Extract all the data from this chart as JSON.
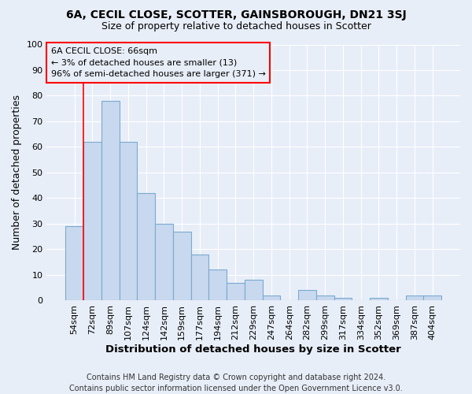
{
  "title_line1": "6A, CECIL CLOSE, SCOTTER, GAINSBOROUGH, DN21 3SJ",
  "title_line2": "Size of property relative to detached houses in Scotter",
  "xlabel": "Distribution of detached houses by size in Scotter",
  "ylabel": "Number of detached properties",
  "footer_line1": "Contains HM Land Registry data © Crown copyright and database right 2024.",
  "footer_line2": "Contains public sector information licensed under the Open Government Licence v3.0.",
  "categories": [
    "54sqm",
    "72sqm",
    "89sqm",
    "107sqm",
    "124sqm",
    "142sqm",
    "159sqm",
    "177sqm",
    "194sqm",
    "212sqm",
    "229sqm",
    "247sqm",
    "264sqm",
    "282sqm",
    "299sqm",
    "317sqm",
    "334sqm",
    "352sqm",
    "369sqm",
    "387sqm",
    "404sqm"
  ],
  "values": [
    29,
    62,
    78,
    62,
    42,
    30,
    27,
    18,
    12,
    7,
    8,
    2,
    0,
    4,
    2,
    1,
    0,
    1,
    0,
    2,
    2
  ],
  "bar_color": "#c8d8ee",
  "bar_edge_color": "#7aaad0",
  "annotation_text": "6A CECIL CLOSE: 66sqm\n← 3% of detached houses are smaller (13)\n96% of semi-detached houses are larger (371) →",
  "vline_x": 0.5,
  "ylim": [
    0,
    100
  ],
  "yticks": [
    0,
    10,
    20,
    30,
    40,
    50,
    60,
    70,
    80,
    90,
    100
  ],
  "background_color": "#e8eef8",
  "grid_color": "#ffffff",
  "title_fontsize": 10,
  "subtitle_fontsize": 9,
  "ylabel_fontsize": 9,
  "xlabel_fontsize": 9.5,
  "tick_fontsize": 8,
  "ann_fontsize": 8,
  "footer_fontsize": 7
}
